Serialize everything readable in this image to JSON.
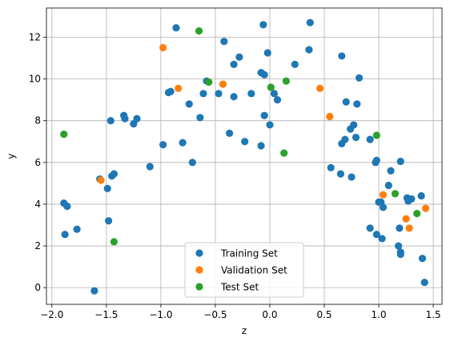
{
  "chart_data": {
    "type": "scatter",
    "title": "",
    "xlabel": "z",
    "ylabel": "y",
    "xlim": [
      -2.05,
      1.58
    ],
    "ylim": [
      -0.8,
      13.4
    ],
    "xticks": [
      "−2.0",
      "−1.5",
      "−1.0",
      "−0.5",
      "0.0",
      "0.5",
      "1.0",
      "1.5"
    ],
    "xtick_values": [
      -2.0,
      -1.5,
      -1.0,
      -0.5,
      0.0,
      0.5,
      1.0,
      1.5
    ],
    "yticks": [
      "0",
      "2",
      "4",
      "6",
      "8",
      "10",
      "12"
    ],
    "ytick_values": [
      0,
      2,
      4,
      6,
      8,
      10,
      12
    ],
    "grid": true,
    "legend_position": "lower-center",
    "series": [
      {
        "name": "Training Set",
        "color": "#1f77b4",
        "points": [
          [
            -1.89,
            4.05
          ],
          [
            -1.88,
            2.55
          ],
          [
            -1.86,
            3.9
          ],
          [
            -1.77,
            2.8
          ],
          [
            -1.61,
            -0.15
          ],
          [
            -1.56,
            5.2
          ],
          [
            -1.49,
            4.75
          ],
          [
            -1.48,
            3.2
          ],
          [
            -1.46,
            8.0
          ],
          [
            -1.45,
            5.35
          ],
          [
            -1.43,
            5.45
          ],
          [
            -1.34,
            8.25
          ],
          [
            -1.33,
            8.1
          ],
          [
            -1.25,
            7.85
          ],
          [
            -1.22,
            8.1
          ],
          [
            -1.1,
            5.8
          ],
          [
            -0.98,
            6.85
          ],
          [
            -0.93,
            9.35
          ],
          [
            -0.91,
            9.4
          ],
          [
            -0.86,
            12.45
          ],
          [
            -0.8,
            6.95
          ],
          [
            -0.74,
            8.8
          ],
          [
            -0.71,
            6.0
          ],
          [
            -0.64,
            8.15
          ],
          [
            -0.61,
            9.3
          ],
          [
            -0.58,
            9.9
          ],
          [
            -0.47,
            9.3
          ],
          [
            -0.42,
            11.8
          ],
          [
            -0.37,
            7.4
          ],
          [
            -0.33,
            10.7
          ],
          [
            -0.33,
            9.15
          ],
          [
            -0.28,
            11.05
          ],
          [
            -0.23,
            7.0
          ],
          [
            -0.17,
            9.3
          ],
          [
            -0.08,
            10.3
          ],
          [
            -0.08,
            6.8
          ],
          [
            -0.06,
            12.6
          ],
          [
            -0.05,
            10.2
          ],
          [
            -0.05,
            8.25
          ],
          [
            -0.02,
            11.25
          ],
          [
            0.0,
            7.8
          ],
          [
            0.04,
            9.3
          ],
          [
            0.07,
            9.0
          ],
          [
            0.23,
            10.7
          ],
          [
            0.36,
            11.4
          ],
          [
            0.37,
            12.7
          ],
          [
            0.56,
            5.75
          ],
          [
            0.65,
            5.45
          ],
          [
            0.66,
            11.1
          ],
          [
            0.66,
            6.9
          ],
          [
            0.69,
            7.1
          ],
          [
            0.7,
            8.9
          ],
          [
            0.74,
            7.6
          ],
          [
            0.75,
            5.3
          ],
          [
            0.77,
            7.8
          ],
          [
            0.79,
            7.2
          ],
          [
            0.8,
            8.8
          ],
          [
            0.82,
            10.05
          ],
          [
            0.92,
            2.85
          ],
          [
            0.92,
            7.1
          ],
          [
            0.97,
            6.0
          ],
          [
            0.98,
            2.55
          ],
          [
            0.98,
            6.1
          ],
          [
            1.0,
            4.1
          ],
          [
            1.02,
            4.1
          ],
          [
            1.03,
            2.35
          ],
          [
            1.04,
            3.85
          ],
          [
            1.09,
            4.9
          ],
          [
            1.11,
            5.6
          ],
          [
            1.18,
            2.0
          ],
          [
            1.19,
            2.85
          ],
          [
            1.2,
            1.7
          ],
          [
            1.2,
            1.6
          ],
          [
            1.2,
            6.05
          ],
          [
            1.26,
            4.3
          ],
          [
            1.27,
            4.15
          ],
          [
            1.3,
            4.25
          ],
          [
            1.39,
            4.4
          ],
          [
            1.4,
            1.4
          ],
          [
            1.42,
            0.25
          ]
        ]
      },
      {
        "name": "Validation Set",
        "color": "#ff7f0e",
        "points": [
          [
            -1.55,
            5.15
          ],
          [
            -0.98,
            11.5
          ],
          [
            -0.84,
            9.55
          ],
          [
            -0.43,
            9.75
          ],
          [
            0.46,
            9.55
          ],
          [
            0.55,
            8.2
          ],
          [
            1.04,
            4.45
          ],
          [
            1.25,
            3.3
          ],
          [
            1.28,
            2.85
          ],
          [
            1.43,
            3.8
          ]
        ]
      },
      {
        "name": "Test Set",
        "color": "#2ca02c",
        "points": [
          [
            -1.89,
            7.35
          ],
          [
            -1.43,
            2.2
          ],
          [
            -0.65,
            12.3
          ],
          [
            -0.56,
            9.85
          ],
          [
            0.01,
            9.6
          ],
          [
            0.13,
            6.45
          ],
          [
            0.15,
            9.9
          ],
          [
            0.98,
            7.3
          ],
          [
            1.15,
            4.5
          ],
          [
            1.35,
            3.55
          ]
        ]
      }
    ]
  }
}
